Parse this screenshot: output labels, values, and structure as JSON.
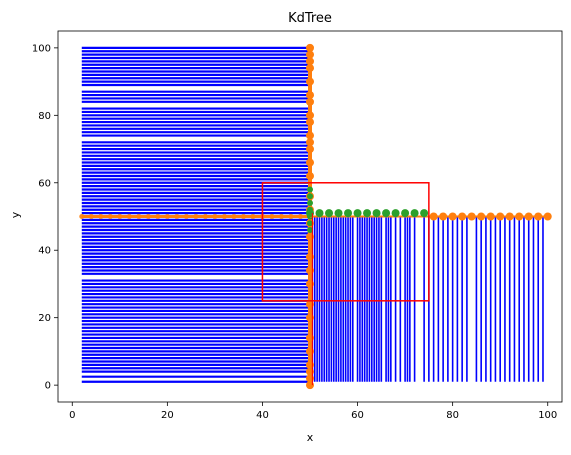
{
  "chart_data": {
    "type": "scatter",
    "title": "KdTree",
    "xlabel": "x",
    "ylabel": "y",
    "xlim": [
      -3,
      103
    ],
    "ylim": [
      -5,
      105
    ],
    "x_ticks": [
      0,
      20,
      40,
      60,
      80,
      100
    ],
    "y_ticks": [
      0,
      20,
      40,
      60,
      80,
      100
    ],
    "grid": false,
    "colors": {
      "partition_lines": "#0000ff",
      "split_points_vertical": "#ff7f0e",
      "split_points_horizontal": "#2ca02c",
      "query_rect": "#ff0000",
      "splitter_line": "#ff0000"
    },
    "split_vertical": {
      "x": 50,
      "points_y": [
        0,
        2,
        4,
        6,
        10,
        14,
        20,
        24,
        30,
        34,
        38,
        44,
        48,
        52,
        56,
        62,
        66,
        70,
        72,
        74,
        78,
        80,
        84,
        86,
        90,
        94,
        96,
        98,
        100
      ]
    },
    "split_horizontal_left": {
      "y": 50,
      "x_from": 2,
      "x_to": 50
    },
    "split_horizontal_right": {
      "y": 50,
      "points_x": [
        50,
        52,
        54,
        56,
        58,
        60,
        62,
        64,
        66,
        68,
        70,
        72,
        74,
        76,
        78,
        80,
        82,
        84,
        86,
        88,
        90,
        92,
        94,
        96,
        98,
        100
      ]
    },
    "left_horizontal_segments": {
      "x_from": 2,
      "x_to": 50,
      "y": [
        1,
        2.5,
        4,
        5,
        6,
        7,
        8,
        9,
        10,
        11,
        12,
        13,
        14,
        15,
        16,
        17,
        18,
        19,
        20,
        21,
        22,
        23,
        24,
        25,
        26,
        27,
        28,
        29,
        30,
        31,
        33,
        34,
        35,
        36,
        37,
        38,
        39,
        40,
        41,
        42,
        43,
        44,
        45,
        46,
        47,
        48,
        49,
        51,
        52,
        53,
        54,
        55,
        56,
        57,
        58,
        59,
        60,
        61,
        62,
        63,
        64,
        65,
        66,
        67,
        68,
        69,
        70,
        71,
        72,
        74,
        75,
        76,
        77,
        78,
        79,
        80,
        81,
        82,
        84,
        85,
        86,
        87,
        89,
        90,
        91,
        92,
        93,
        94,
        95,
        96,
        97,
        98,
        99,
        100
      ]
    },
    "right_vertical_segments": {
      "y_from": 1,
      "y_to": 50,
      "x": [
        50.5,
        51,
        51.5,
        52,
        52.5,
        53,
        53.5,
        54,
        54.5,
        55,
        55.5,
        56,
        56.5,
        57,
        57.5,
        58,
        58.5,
        59,
        60,
        60.5,
        61,
        61.5,
        62,
        62.5,
        63,
        63.5,
        64,
        64.5,
        65,
        66,
        66.5,
        67,
        68,
        69,
        70,
        70.5,
        71,
        72,
        74,
        75,
        76,
        77,
        78,
        79,
        80,
        81,
        82,
        83,
        85,
        86,
        87,
        88,
        89,
        90,
        91,
        92,
        93,
        94,
        95,
        96,
        97,
        98,
        99
      ]
    },
    "query_rect": {
      "x": [
        40,
        75
      ],
      "y": [
        25,
        60
      ]
    }
  }
}
